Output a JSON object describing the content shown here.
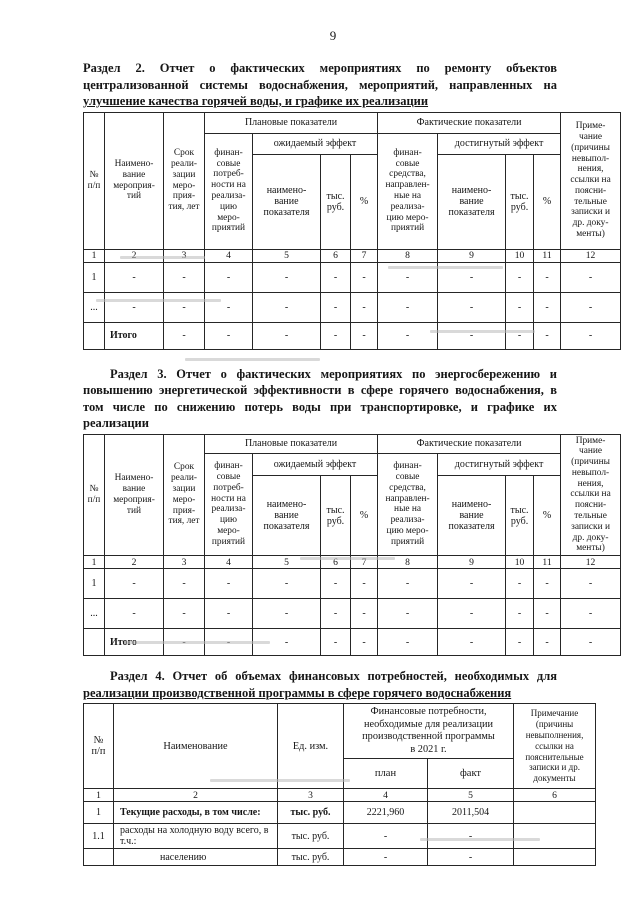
{
  "page_number": "9",
  "section2": {
    "heading_lines": [
      "Раздел 2. Отчет о фактических мероприятиях по ремонту объектов",
      "централизованной системы водоснабжения, мероприятий, направленных на",
      "улучшение качества горячей воды, и графике их реализации"
    ],
    "table": {
      "col_num": "№\nп/п",
      "col_name": "Наимено-\nвание\nмероприя-\nтий",
      "col_term": "Срок\nреали-\nзации\nмеро-\nприя-\nтия, лет",
      "group_plan": "Плановые показатели",
      "group_fact": "Фактические показатели",
      "col_finneed": "финан-\nсовые\nпотреб-\nности на\nреализа-\nцию\nмеро-\nприятий",
      "expected_effect": "ожидаемый эффект",
      "achieved_effect": "достигнутый эффект",
      "col_indicator": "наимено-\nвание\nпоказателя",
      "col_thous_rub": "тыс.\nруб.",
      "col_pct": "%",
      "col_finfunds": "финан-\nсовые\nсредства,\nнаправлен-\nные на\nреализа-\nцию меро-\nприятий",
      "col_note": "Приме-\nчание\n(причины\nневыпол-\nнения,\nссылки на\nпоясни-\nтельные\nзаписки и\nдр. доку-\nменты)",
      "body_rows": [
        [
          "1",
          "2",
          "3",
          "4",
          "5",
          "6",
          "7",
          "8",
          "9",
          "10",
          "11",
          "12"
        ],
        [
          "1",
          "-",
          "-",
          "-",
          "-",
          "-",
          "-",
          "-",
          "-",
          "-",
          "-",
          "-"
        ],
        [
          "...",
          "-",
          "-",
          "-",
          "-",
          "-",
          "-",
          "-",
          "-",
          "-",
          "-",
          "-"
        ],
        [
          "",
          "Итого",
          "-",
          "-",
          "-",
          "-",
          "-",
          "-",
          "-",
          "-",
          "-",
          "-"
        ]
      ]
    }
  },
  "section3": {
    "heading_lines": [
      "Раздел 3. Отчет о фактических мероприятиях по энергосбережению и",
      "повышению энергетической эффективности в сфере горячего водоснабжения, в",
      "том числе по снижению потерь воды при транспортировке, и графике их",
      "реализации"
    ],
    "table": {
      "col_num": "№\nп/п",
      "col_name": "Наимено-\nвание\nмероприя-\nтий",
      "col_term": "Срок\nреали-\nзации\nмеро-\nприя-\nтия, лет",
      "group_plan": "Плановые показатели",
      "group_fact": "Фактические показатели",
      "col_finneed": "финан-\nсовые\nпотреб-\nности на\nреализа-\nцию\nмеро-\nприятий",
      "expected_effect": "ожидаемый эффект",
      "achieved_effect": "достигнутый эффект",
      "col_indicator": "наимено-\nвание\nпоказателя",
      "col_thous_rub": "тыс.\nруб.",
      "col_pct": "%",
      "col_finfunds": "финан-\nсовые\nсредства,\nнаправлен-\nные на\nреализа-\nцию меро-\nприятий",
      "col_note": "Приме-\nчание\n(причины\nневыпол-\nнения,\nссылки на\nпоясни-\nтельные\nзаписки и\nдр. доку-\nменты)",
      "body_rows": [
        [
          "1",
          "2",
          "3",
          "4",
          "5",
          "6",
          "7",
          "8",
          "9",
          "10",
          "11",
          "12"
        ],
        [
          "1",
          "-",
          "-",
          "-",
          "-",
          "-",
          "-",
          "-",
          "-",
          "-",
          "-",
          "-"
        ],
        [
          "...",
          "-",
          "-",
          "-",
          "-",
          "-",
          "-",
          "-",
          "-",
          "-",
          "-",
          "-"
        ],
        [
          "",
          "Итого",
          "-",
          "-",
          "-",
          "-",
          "-",
          "-",
          "-",
          "-",
          "-",
          "-"
        ]
      ]
    }
  },
  "section4": {
    "heading_lines": [
      "Раздел 4. Отчет об объемах финансовых потребностей, необходимых для",
      "реализации производственной программы в сфере горячего водоснабжения"
    ],
    "table": {
      "col_num": "№\nп/п",
      "col_name": "Наименование",
      "col_unit": "Ед. изм.",
      "group_fin": "Финансовые потребности,\nнеобходимые для реализации\nпроизводственной программы\nв 2021 г.",
      "col_plan": "план",
      "col_fact": "факт",
      "col_note": "Примечание\n(причины\nневыполнения,\nссылки на\nпояснительные\nзаписки и др.\nдокументы",
      "body_rows": [
        [
          "1",
          "2",
          "3",
          "4",
          "5",
          "6"
        ],
        [
          "1",
          "Текущие расходы, в том числе:",
          "тыс. руб.",
          "2221,960",
          "2011,504",
          ""
        ],
        [
          "1.1",
          "расходы на холодную воду всего, в т.ч.:",
          "тыс. руб.",
          "-",
          "-",
          ""
        ],
        [
          "",
          "населению",
          "тыс. руб.",
          "-",
          "-",
          ""
        ]
      ]
    }
  }
}
